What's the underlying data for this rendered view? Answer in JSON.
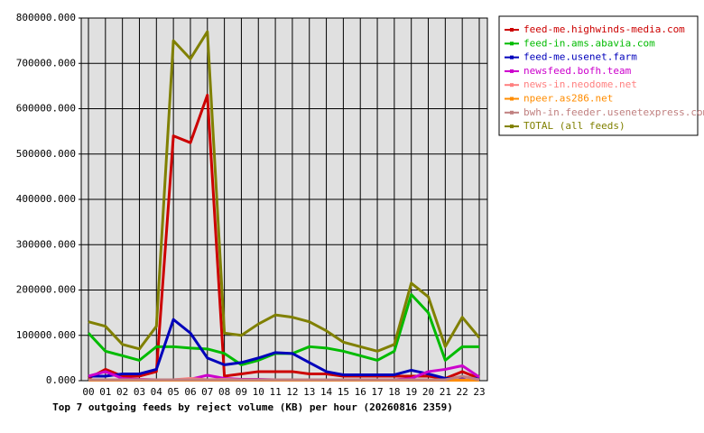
{
  "chart_data": {
    "type": "line",
    "title": "Top 7 outgoing feeds by reject volume (KB) per hour (20260816 2359)",
    "categories": [
      "00",
      "01",
      "02",
      "03",
      "04",
      "05",
      "06",
      "07",
      "08",
      "09",
      "10",
      "11",
      "12",
      "13",
      "14",
      "15",
      "16",
      "17",
      "18",
      "19",
      "20",
      "21",
      "22",
      "23"
    ],
    "ylim": [
      0,
      800000
    ],
    "yticks": [
      {
        "value": 0,
        "label": "0.000"
      },
      {
        "value": 100000,
        "label": "100000.000"
      },
      {
        "value": 200000,
        "label": "200000.000"
      },
      {
        "value": 300000,
        "label": "300000.000"
      },
      {
        "value": 400000,
        "label": "400000.000"
      },
      {
        "value": 500000,
        "label": "500000.000"
      },
      {
        "value": 600000,
        "label": "600000.000"
      },
      {
        "value": 700000,
        "label": "700000.000"
      },
      {
        "value": 800000,
        "label": "800000.000"
      }
    ],
    "grid": true,
    "legend": "right",
    "series": [
      {
        "name": "feed-me.highwinds-media.com",
        "color": "#cc0000",
        "values": [
          5000,
          25000,
          10000,
          10000,
          20000,
          540000,
          525000,
          630000,
          10000,
          15000,
          20000,
          20000,
          20000,
          15000,
          15000,
          10000,
          10000,
          10000,
          10000,
          10000,
          10000,
          5000,
          20000,
          5000
        ]
      },
      {
        "name": "feed-in.ams.abavia.com",
        "color": "#00bb00",
        "values": [
          105000,
          65000,
          55000,
          45000,
          75000,
          75000,
          72000,
          70000,
          60000,
          35000,
          45000,
          60000,
          60000,
          75000,
          72000,
          65000,
          55000,
          45000,
          65000,
          190000,
          150000,
          45000,
          75000,
          75000
        ]
      },
      {
        "name": "feed-me.usenet.farm",
        "color": "#0000bb",
        "values": [
          10000,
          10000,
          15000,
          15000,
          25000,
          135000,
          105000,
          50000,
          35000,
          40000,
          50000,
          62000,
          60000,
          40000,
          20000,
          13000,
          13000,
          13000,
          13000,
          23000,
          15000,
          5000,
          5000,
          5000
        ]
      },
      {
        "name": "newsfeed.bofh.team",
        "color": "#cc00cc",
        "values": [
          10000,
          20000,
          5000,
          3000,
          2000,
          2000,
          3000,
          12000,
          5000,
          3000,
          3000,
          2000,
          2000,
          2000,
          2000,
          2000,
          2000,
          2000,
          2000,
          5000,
          20000,
          25000,
          33000,
          8000
        ]
      },
      {
        "name": "news-in.neodome.net",
        "color": "#ff8080",
        "values": [
          2000,
          2000,
          2000,
          2000,
          2000,
          2000,
          5000,
          2000,
          3000,
          2000,
          2000,
          2000,
          2000,
          2000,
          2000,
          2000,
          2000,
          2000,
          2000,
          2000,
          2000,
          2000,
          2000,
          2000
        ]
      },
      {
        "name": "npeer.as286.net",
        "color": "#ff8c00",
        "values": [
          1000,
          1000,
          1000,
          1000,
          1000,
          1000,
          1000,
          1000,
          1000,
          1000,
          1000,
          1000,
          1000,
          1000,
          1000,
          1000,
          1000,
          1000,
          1000,
          1000,
          1000,
          1000,
          1000,
          1000
        ]
      },
      {
        "name": "bwh-in.feeder.usenetexpress.com",
        "color": "#c08080",
        "values": [
          2000,
          2000,
          2000,
          2000,
          2000,
          2000,
          2000,
          2000,
          2000,
          2000,
          2000,
          2000,
          2000,
          2000,
          2000,
          2000,
          2000,
          2000,
          2000,
          2000,
          2000,
          2000,
          10000,
          2000
        ]
      },
      {
        "name": "TOTAL (all feeds)",
        "color": "#808000",
        "values": [
          130000,
          120000,
          80000,
          70000,
          120000,
          750000,
          710000,
          770000,
          105000,
          100000,
          125000,
          145000,
          140000,
          130000,
          110000,
          85000,
          75000,
          65000,
          80000,
          215000,
          185000,
          75000,
          140000,
          95000
        ]
      }
    ]
  }
}
